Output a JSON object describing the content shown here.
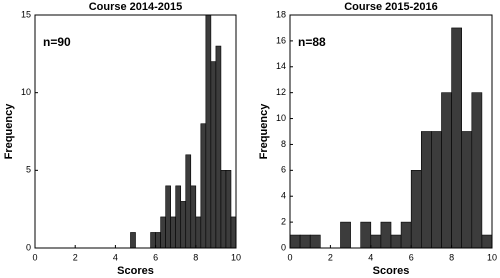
{
  "chart_data": [
    {
      "type": "histogram",
      "title": "Course 2014-2015",
      "annotation": "n=90",
      "x_label": "Scores",
      "y_label": "Frequency",
      "bins": [
        4.75,
        5,
        5.25,
        5.5,
        5.75,
        6,
        6.25,
        6.5,
        6.75,
        7,
        7.25,
        7.5,
        7.75,
        8,
        8.25,
        8.5,
        8.75,
        9,
        9.25,
        9.5,
        9.75,
        10
      ],
      "values": [
        1,
        0,
        0,
        0,
        1,
        1,
        2,
        4,
        2,
        4,
        3,
        6,
        4,
        2,
        8,
        15,
        12,
        13,
        5,
        5,
        2
      ],
      "color": "#3c3c3c",
      "xlim": [
        0,
        10
      ],
      "ylim": [
        0,
        15
      ],
      "xticks": [
        0,
        2,
        4,
        6,
        8,
        10
      ],
      "yticks": [
        0,
        5,
        10,
        15
      ]
    },
    {
      "type": "histogram",
      "title": "Course 2015-2016",
      "annotation": "n=88",
      "x_label": "Scores",
      "y_label": "Frequency",
      "bins": [
        0,
        0.5,
        1,
        1.5,
        2,
        2.5,
        3,
        3.5,
        4,
        4.5,
        5,
        5.5,
        6,
        6.5,
        7,
        7.5,
        8,
        8.5,
        9,
        9.5,
        10
      ],
      "values": [
        1,
        1,
        1,
        0,
        0,
        2,
        0,
        2,
        1,
        2,
        1,
        2,
        6,
        9,
        9,
        12,
        17,
        9,
        12,
        1
      ],
      "color": "#3c3c3c",
      "xlim": [
        0,
        10
      ],
      "ylim": [
        0,
        18
      ],
      "xticks": [
        0,
        2,
        4,
        6,
        8,
        10
      ],
      "yticks": [
        0,
        2,
        4,
        6,
        8,
        10,
        12,
        14,
        16,
        18
      ]
    }
  ]
}
